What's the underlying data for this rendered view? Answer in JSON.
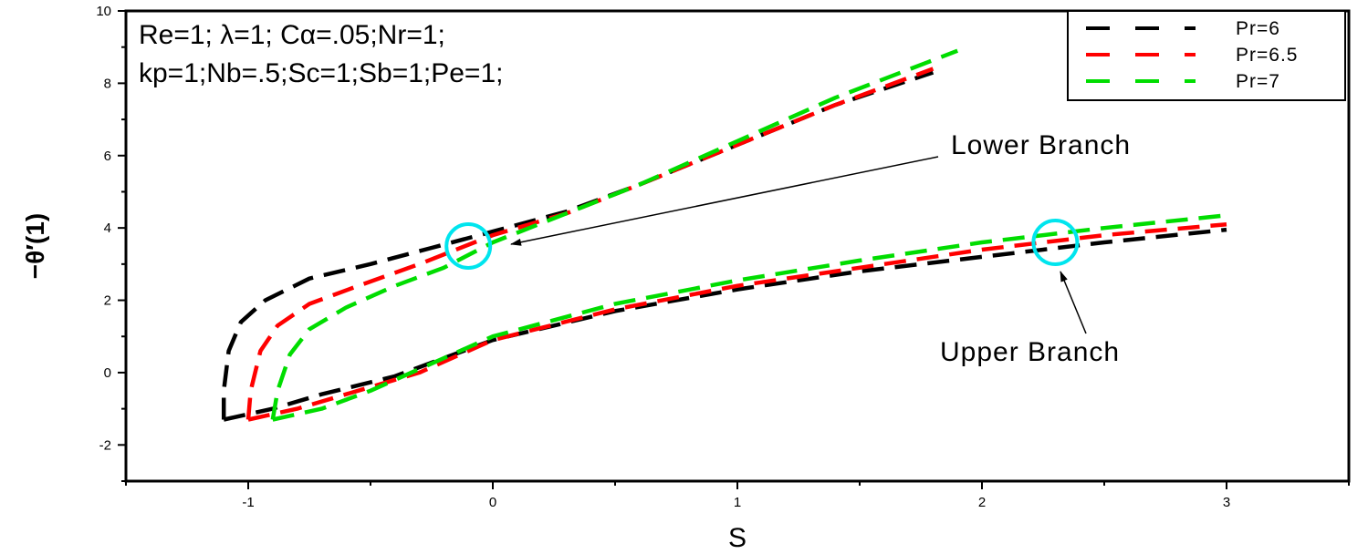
{
  "chart_data": {
    "type": "line",
    "xlabel": "S",
    "ylabel": "−θ′(1)",
    "xlim": [
      -1.5,
      3.5
    ],
    "ylim": [
      -3,
      10
    ],
    "x_ticks": [
      -1,
      0,
      1,
      2,
      3
    ],
    "y_ticks": [
      -2,
      0,
      2,
      4,
      6,
      8,
      10
    ],
    "parameter_lines": [
      "Re=1; λ=1; Cα=.05;Nr=1;",
      "kp=1;Nb=.5;Sc=1;Sb=1;Pe=1;"
    ],
    "legend_position": "top-right",
    "series": [
      {
        "name": "Pr=6",
        "color": "#000000",
        "lower_branch": {
          "x": [
            -1.1,
            -1.1,
            -1.08,
            -1.03,
            -0.93,
            -0.75,
            -0.5,
            -0.25,
            0,
            0.3,
            0.6,
            1.0,
            1.4,
            1.8
          ],
          "y": [
            -1.3,
            -0.5,
            0.6,
            1.4,
            2.0,
            2.6,
            3.0,
            3.45,
            3.9,
            4.45,
            5.2,
            6.3,
            7.4,
            8.3
          ]
        },
        "upper_branch": {
          "x": [
            -1.1,
            -0.9,
            -0.7,
            -0.4,
            0,
            0.5,
            1.0,
            1.5,
            2.0,
            2.5,
            3.0
          ],
          "y": [
            -1.3,
            -1.0,
            -0.6,
            -0.1,
            0.9,
            1.7,
            2.3,
            2.8,
            3.2,
            3.6,
            3.95
          ]
        }
      },
      {
        "name": "Pr=6.5",
        "color": "#ff0000",
        "lower_branch": {
          "x": [
            -1.0,
            -0.99,
            -0.95,
            -0.88,
            -0.75,
            -0.55,
            -0.3,
            0,
            0.3,
            0.6,
            1.0,
            1.4,
            1.8
          ],
          "y": [
            -1.3,
            -0.5,
            0.6,
            1.3,
            1.9,
            2.4,
            3.0,
            3.8,
            4.4,
            5.2,
            6.3,
            7.4,
            8.4
          ]
        },
        "upper_branch": {
          "x": [
            -1.0,
            -0.8,
            -0.6,
            -0.3,
            0,
            0.5,
            1.0,
            1.5,
            2.0,
            2.5,
            3.0
          ],
          "y": [
            -1.3,
            -1.0,
            -0.6,
            0.0,
            0.9,
            1.75,
            2.4,
            2.9,
            3.4,
            3.8,
            4.1
          ]
        }
      },
      {
        "name": "Pr=7",
        "color": "#00dd00",
        "lower_branch": {
          "x": [
            -0.9,
            -0.88,
            -0.83,
            -0.75,
            -0.6,
            -0.4,
            -0.2,
            0,
            0.3,
            0.6,
            1.0,
            1.4,
            1.9
          ],
          "y": [
            -1.3,
            -0.5,
            0.5,
            1.2,
            1.8,
            2.4,
            2.9,
            3.6,
            4.4,
            5.2,
            6.4,
            7.6,
            8.9
          ]
        },
        "upper_branch": {
          "x": [
            -0.9,
            -0.7,
            -0.5,
            -0.2,
            0,
            0.5,
            1.0,
            1.5,
            2.0,
            2.5,
            3.0
          ],
          "y": [
            -1.3,
            -1.0,
            -0.5,
            0.4,
            1.0,
            1.9,
            2.55,
            3.1,
            3.6,
            4.0,
            4.35
          ]
        }
      }
    ],
    "annotations": [
      {
        "label": "Lower Branch",
        "target": {
          "x": -0.1,
          "y": 3.5
        }
      },
      {
        "label": "Upper Branch",
        "target": {
          "x": 2.3,
          "y": 3.6
        }
      }
    ],
    "highlight_color": "#00e5ee"
  }
}
